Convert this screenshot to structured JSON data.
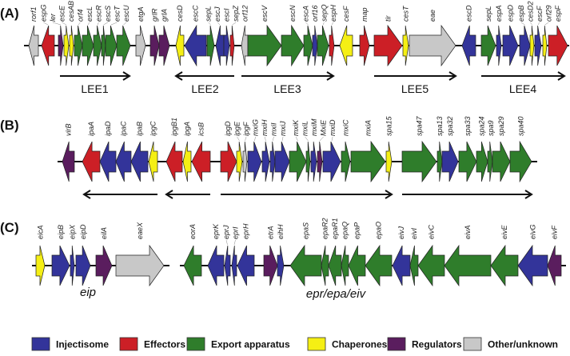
{
  "colors": {
    "injectisome": "#33349a",
    "effectors": "#cc1f26",
    "export": "#2f7d2b",
    "chaperones": "#f5ef14",
    "regulators": "#5a1d5e",
    "other": "#c8c8c8"
  },
  "legend": [
    {
      "key": "injectisome",
      "label": "Injectisome"
    },
    {
      "key": "effectors",
      "label": "Effectors"
    },
    {
      "key": "export",
      "label": "Export apparatus"
    },
    {
      "key": "chaperones",
      "label": "Chaperones"
    },
    {
      "key": "regulators",
      "label": "Regulators"
    },
    {
      "key": "other",
      "label": "Other/unknown"
    }
  ],
  "rows": [
    {
      "panel": "(A)",
      "genes": [
        {
          "name": "rorf1",
          "cat": "other",
          "dir": "left"
        },
        {
          "name": "espG",
          "cat": "effectors",
          "dir": "left"
        },
        {
          "name": "ler",
          "cat": "regulators",
          "dir": "right"
        },
        {
          "name": "escE",
          "cat": "chaperones",
          "dir": "right"
        },
        {
          "name": "cesAB",
          "cat": "chaperones",
          "dir": "right"
        },
        {
          "name": "orf4",
          "cat": "export",
          "dir": "right"
        },
        {
          "name": "escL",
          "cat": "export",
          "dir": "right"
        },
        {
          "name": "escR",
          "cat": "export",
          "dir": "right"
        },
        {
          "name": "escS",
          "cat": "export",
          "dir": "right"
        },
        {
          "name": "escT",
          "cat": "export",
          "dir": "right"
        },
        {
          "name": "escU",
          "cat": "export",
          "dir": "right"
        },
        {
          "name": "etgA",
          "cat": "other",
          "dir": "right"
        },
        {
          "name": "grlR",
          "cat": "regulators",
          "dir": "right"
        },
        {
          "name": "grlA",
          "cat": "regulators",
          "dir": "right"
        },
        {
          "name": "cesD",
          "cat": "chaperones",
          "dir": "left"
        },
        {
          "name": "escC",
          "cat": "injectisome",
          "dir": "left"
        },
        {
          "name": "sepL",
          "cat": "export",
          "dir": "right"
        },
        {
          "name": "escJ",
          "cat": "injectisome",
          "dir": "left"
        },
        {
          "name": "escI",
          "cat": "injectisome",
          "dir": "right"
        },
        {
          "name": "sepZ",
          "cat": "effectors",
          "dir": "right"
        },
        {
          "name": "orf12",
          "cat": "other",
          "dir": "left"
        },
        {
          "name": "escV",
          "cat": "export",
          "dir": "right"
        },
        {
          "name": "escN",
          "cat": "export",
          "dir": "right"
        },
        {
          "name": "escA",
          "cat": "export",
          "dir": "right"
        },
        {
          "name": "orf16",
          "cat": "injectisome",
          "dir": "right"
        },
        {
          "name": "sepQ",
          "cat": "export",
          "dir": "right"
        },
        {
          "name": "espH",
          "cat": "effectors",
          "dir": "right"
        },
        {
          "name": "cesF",
          "cat": "chaperones",
          "dir": "left"
        },
        {
          "name": "map",
          "cat": "effectors",
          "dir": "right"
        },
        {
          "name": "tir",
          "cat": "effectors",
          "dir": "right"
        },
        {
          "name": "cesT",
          "cat": "chaperones",
          "dir": "right"
        },
        {
          "name": "eae",
          "cat": "other",
          "dir": "right"
        },
        {
          "name": "escD",
          "cat": "injectisome",
          "dir": "left"
        },
        {
          "name": "sepL",
          "cat": "export",
          "dir": "right"
        },
        {
          "name": "espA",
          "cat": "injectisome",
          "dir": "right"
        },
        {
          "name": "espD",
          "cat": "injectisome",
          "dir": "right"
        },
        {
          "name": "espB",
          "cat": "injectisome",
          "dir": "right"
        },
        {
          "name": "cesD2",
          "cat": "chaperones",
          "dir": "right"
        },
        {
          "name": "escF",
          "cat": "injectisome",
          "dir": "right"
        },
        {
          "name": "orf29",
          "cat": "chaperones",
          "dir": "right"
        },
        {
          "name": "espF",
          "cat": "effectors",
          "dir": "right"
        }
      ],
      "operons": [
        {
          "label": "LEE1",
          "dir": "right"
        },
        {
          "label": "LEE2",
          "dir": "left"
        },
        {
          "label": "LEE3",
          "dir": "right"
        },
        {
          "label": "LEE5",
          "dir": "right"
        },
        {
          "label": "LEE4",
          "dir": "right"
        }
      ],
      "clusters": []
    },
    {
      "panel": "(B)",
      "genes": [
        {
          "name": "virB",
          "cat": "regulators",
          "dir": "left"
        },
        {
          "name": "ipaA",
          "cat": "effectors",
          "dir": "left"
        },
        {
          "name": "ipaD",
          "cat": "injectisome",
          "dir": "left"
        },
        {
          "name": "ipaC",
          "cat": "injectisome",
          "dir": "left"
        },
        {
          "name": "ipaB",
          "cat": "injectisome",
          "dir": "left"
        },
        {
          "name": "ipgC",
          "cat": "chaperones",
          "dir": "left"
        },
        {
          "name": "ipgB1",
          "cat": "effectors",
          "dir": "left"
        },
        {
          "name": "ipgA",
          "cat": "chaperones",
          "dir": "left"
        },
        {
          "name": "icsB",
          "cat": "effectors",
          "dir": "left"
        },
        {
          "name": "ipgD",
          "cat": "effectors",
          "dir": "right"
        },
        {
          "name": "ipgE",
          "cat": "chaperones",
          "dir": "right"
        },
        {
          "name": "ipgF",
          "cat": "other",
          "dir": "right"
        },
        {
          "name": "mxiG",
          "cat": "injectisome",
          "dir": "right"
        },
        {
          "name": "mxiH",
          "cat": "injectisome",
          "dir": "right"
        },
        {
          "name": "mxiI",
          "cat": "injectisome",
          "dir": "right"
        },
        {
          "name": "mxiJ",
          "cat": "injectisome",
          "dir": "right"
        },
        {
          "name": "mxiK",
          "cat": "export",
          "dir": "right"
        },
        {
          "name": "mxiL",
          "cat": "export",
          "dir": "right"
        },
        {
          "name": "mxiM",
          "cat": "injectisome",
          "dir": "right"
        },
        {
          "name": "MxiE",
          "cat": "regulators",
          "dir": "right"
        },
        {
          "name": "mxiD",
          "cat": "injectisome",
          "dir": "right"
        },
        {
          "name": "mxiC",
          "cat": "export",
          "dir": "right"
        },
        {
          "name": "mxiA",
          "cat": "export",
          "dir": "right"
        },
        {
          "name": "spa15",
          "cat": "chaperones",
          "dir": "right"
        },
        {
          "name": "spa47",
          "cat": "export",
          "dir": "right"
        },
        {
          "name": "spa13",
          "cat": "export",
          "dir": "right"
        },
        {
          "name": "spa32",
          "cat": "injectisome",
          "dir": "right"
        },
        {
          "name": "spa33",
          "cat": "export",
          "dir": "right"
        },
        {
          "name": "spa24",
          "cat": "export",
          "dir": "right"
        },
        {
          "name": "spa9",
          "cat": "export",
          "dir": "right"
        },
        {
          "name": "spa29",
          "cat": "export",
          "dir": "right"
        },
        {
          "name": "spa40",
          "cat": "export",
          "dir": "right"
        }
      ],
      "operons": [
        {
          "label": "",
          "dir": "left"
        },
        {
          "label": "",
          "dir": "left"
        },
        {
          "label": "",
          "dir": "right"
        },
        {
          "label": "",
          "dir": "right"
        }
      ],
      "clusters": []
    },
    {
      "panel": "(C)",
      "genes": [
        {
          "name": "eicA",
          "cat": "chaperones",
          "dir": "right"
        },
        {
          "name": "eipB",
          "cat": "injectisome",
          "dir": "right"
        },
        {
          "name": "eipX",
          "cat": "injectisome",
          "dir": "right"
        },
        {
          "name": "eipD",
          "cat": "injectisome",
          "dir": "right"
        },
        {
          "name": "eilA",
          "cat": "regulators",
          "dir": "right"
        },
        {
          "name": "eaeX",
          "cat": "other",
          "dir": "right"
        },
        {
          "name": "eorA",
          "cat": "export",
          "dir": "left"
        },
        {
          "name": "eprK",
          "cat": "injectisome",
          "dir": "left"
        },
        {
          "name": "eprJ",
          "cat": "injectisome",
          "dir": "left"
        },
        {
          "name": "eprI",
          "cat": "injectisome",
          "dir": "left"
        },
        {
          "name": "eprH",
          "cat": "injectisome",
          "dir": "left"
        },
        {
          "name": "etrA",
          "cat": "regulators",
          "dir": "right"
        },
        {
          "name": "eihH",
          "cat": "injectisome",
          "dir": "right"
        },
        {
          "name": "epaS",
          "cat": "export",
          "dir": "left"
        },
        {
          "name": "epaR2",
          "cat": "export",
          "dir": "left"
        },
        {
          "name": "epaR1",
          "cat": "export",
          "dir": "left"
        },
        {
          "name": "epaQ",
          "cat": "export",
          "dir": "left"
        },
        {
          "name": "epaP",
          "cat": "export",
          "dir": "left"
        },
        {
          "name": "epaO",
          "cat": "export",
          "dir": "left"
        },
        {
          "name": "eivJ",
          "cat": "injectisome",
          "dir": "left"
        },
        {
          "name": "eivI",
          "cat": "export",
          "dir": "left"
        },
        {
          "name": "eivC",
          "cat": "export",
          "dir": "left"
        },
        {
          "name": "eivA",
          "cat": "export",
          "dir": "left"
        },
        {
          "name": "eivE",
          "cat": "export",
          "dir": "left"
        },
        {
          "name": "eivG",
          "cat": "injectisome",
          "dir": "left"
        },
        {
          "name": "eivF",
          "cat": "regulators",
          "dir": "left"
        }
      ],
      "operons": [],
      "clusters": [
        {
          "label": "eip"
        },
        {
          "label": "epr/epa/eiv"
        }
      ]
    }
  ]
}
